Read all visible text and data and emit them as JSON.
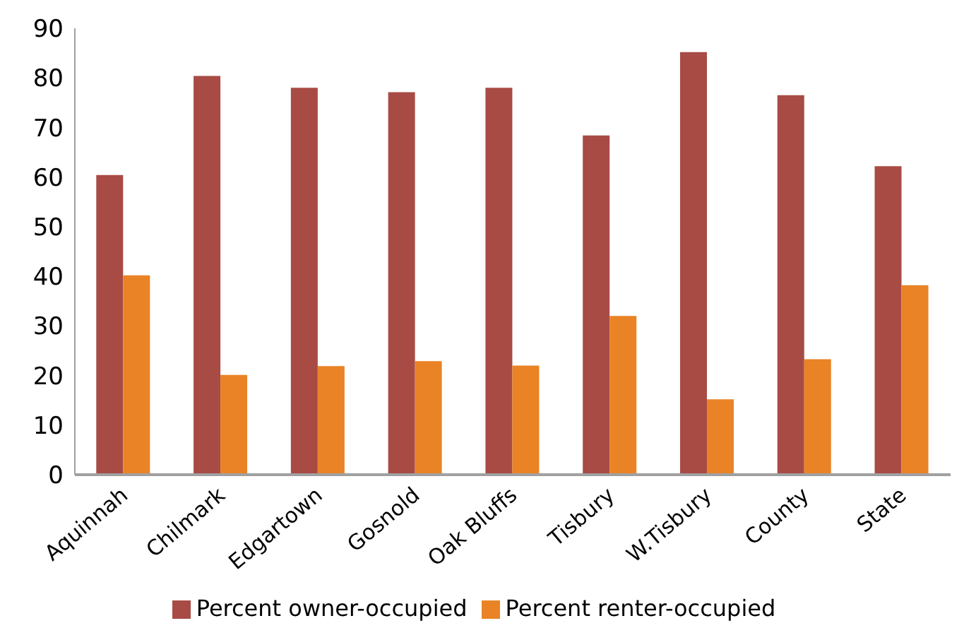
{
  "chart_data": {
    "type": "bar",
    "categories": [
      "Aquinnah",
      "Chilmark",
      "Edgartown",
      "Gosnold",
      "Oak Bluffs",
      "Tisbury",
      "W.Tisbury",
      "County",
      "State"
    ],
    "series": [
      {
        "name": "Percent owner-occupied",
        "color": "#a84b45",
        "values": [
          60.4,
          80.4,
          78,
          77.1,
          78,
          68.4,
          85.2,
          76.5,
          62.2
        ]
      },
      {
        "name": "Percent renter-occupied",
        "color": "#e98326",
        "values": [
          40.2,
          20.1,
          21.9,
          22.9,
          22,
          32,
          15.2,
          23.3,
          38.2
        ]
      }
    ],
    "ylim": [
      0,
      90
    ],
    "yticks": [
      0,
      10,
      20,
      30,
      40,
      50,
      60,
      70,
      80,
      90
    ],
    "grid": false,
    "legend": "bottom"
  }
}
